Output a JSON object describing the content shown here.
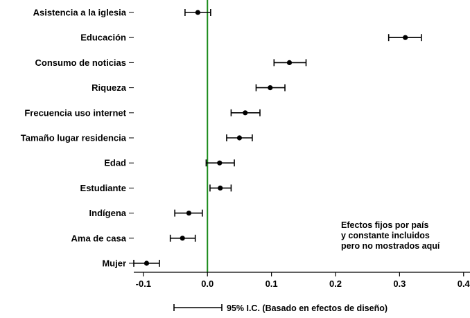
{
  "chart_data": {
    "type": "scatter",
    "subtype": "coefficient-plot-with-error-bars",
    "categories": [
      "Asistencia a la iglesia",
      "Educación",
      "Consumo de noticias",
      "Riqueza",
      "Frecuencia uso internet",
      "Tamaño lugar residencia",
      "Edad",
      "Estudiante",
      "Indígena",
      "Ama de casa",
      "Mujer"
    ],
    "estimates": [
      -0.015,
      0.309,
      0.128,
      0.098,
      0.059,
      0.05,
      0.019,
      0.02,
      -0.029,
      -0.039,
      -0.095
    ],
    "ci_low": [
      -0.035,
      0.283,
      0.104,
      0.076,
      0.037,
      0.03,
      -0.002,
      0.004,
      -0.051,
      -0.058,
      -0.115
    ],
    "ci_high": [
      0.005,
      0.334,
      0.154,
      0.121,
      0.082,
      0.07,
      0.042,
      0.037,
      -0.008,
      -0.019,
      -0.075
    ],
    "xlim": [
      -0.115,
      0.41
    ],
    "xticks": [
      -0.1,
      0.0,
      0.1,
      0.2,
      0.3,
      0.4
    ],
    "xtick_labels": [
      "-0.1",
      "0.0",
      "0.1",
      "0.2",
      "0.3",
      "0.4"
    ],
    "reference_line": 0.0,
    "reference_line_color": "#1a8a1a",
    "grid": false,
    "annotation": [
      "Efectos fijos por país",
      "y constante incluidos",
      "pero no mostrados aquí"
    ],
    "legend": {
      "label": "95% I.C. (Basado en efectos de diseño)",
      "placement": "bottom"
    },
    "colors": {
      "marker": "#000000",
      "errorbar": "#000000",
      "axis": "#000000"
    }
  }
}
